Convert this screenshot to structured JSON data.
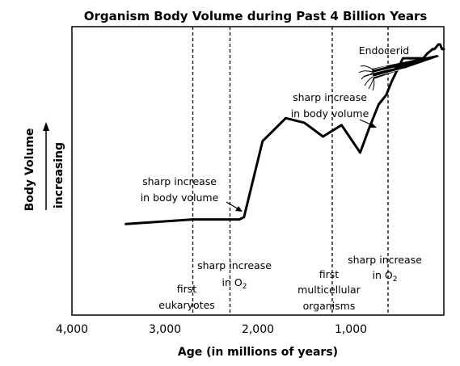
{
  "chart_data": {
    "type": "line",
    "title": "Organism Body Volume during Past 4 Billion Years",
    "xlabel": "Age (in millions of years)",
    "ylabel": "Body Volume",
    "ylabel_secondary": "increasing",
    "x_reversed": true,
    "xlim": [
      4000,
      0
    ],
    "ylim": [
      0,
      100
    ],
    "x_ticks": [
      4000,
      3000,
      2000,
      1000
    ],
    "x_tick_labels": [
      "4,000",
      "3,000",
      "2,000",
      "1,000"
    ],
    "y_ticks": [],
    "grid": false,
    "legend": "none",
    "series": [
      {
        "x": [
          3420,
          2700,
          2400,
          2300,
          2200,
          2150,
          1950,
          1700,
          1500,
          1300,
          1100,
          900,
          800,
          700,
          620,
          560,
          500,
          440,
          400,
          350,
          300,
          250,
          220,
          200,
          180,
          150,
          120,
          100,
          80,
          60,
          40,
          20,
          0
        ],
        "y": [
          22,
          24,
          24,
          24,
          24,
          25,
          58,
          68,
          66,
          60,
          65,
          53,
          64,
          74,
          78,
          84,
          89,
          94,
          94,
          94,
          94,
          94,
          94,
          95,
          96,
          97,
          98,
          98,
          99,
          100,
          100,
          98,
          98
        ]
      }
    ],
    "reference_lines": [
      {
        "x": 2700,
        "label_lines": [
          "first",
          "eukaryotes"
        ]
      },
      {
        "x": 2300,
        "label_lines": [
          "sharp increase",
          "in O"
        ],
        "subscript": "2"
      },
      {
        "x": 1200,
        "label_lines": [
          "first",
          "multicellular",
          "organisms"
        ]
      },
      {
        "x": 600,
        "label_lines": [
          "sharp increase",
          "in O"
        ],
        "subscript": "2"
      }
    ],
    "annotations": [
      {
        "text_lines": [
          "sharp increase",
          "in body volume"
        ],
        "points_to_x": 2150
      },
      {
        "text_lines": [
          "sharp increase",
          "in body volume"
        ],
        "points_to_x": 700
      },
      {
        "text_lines": [
          "Endocerid"
        ],
        "illustration": "endocerid-drawing"
      }
    ],
    "colors": {
      "line": "#000000",
      "background": "#ffffff"
    }
  }
}
